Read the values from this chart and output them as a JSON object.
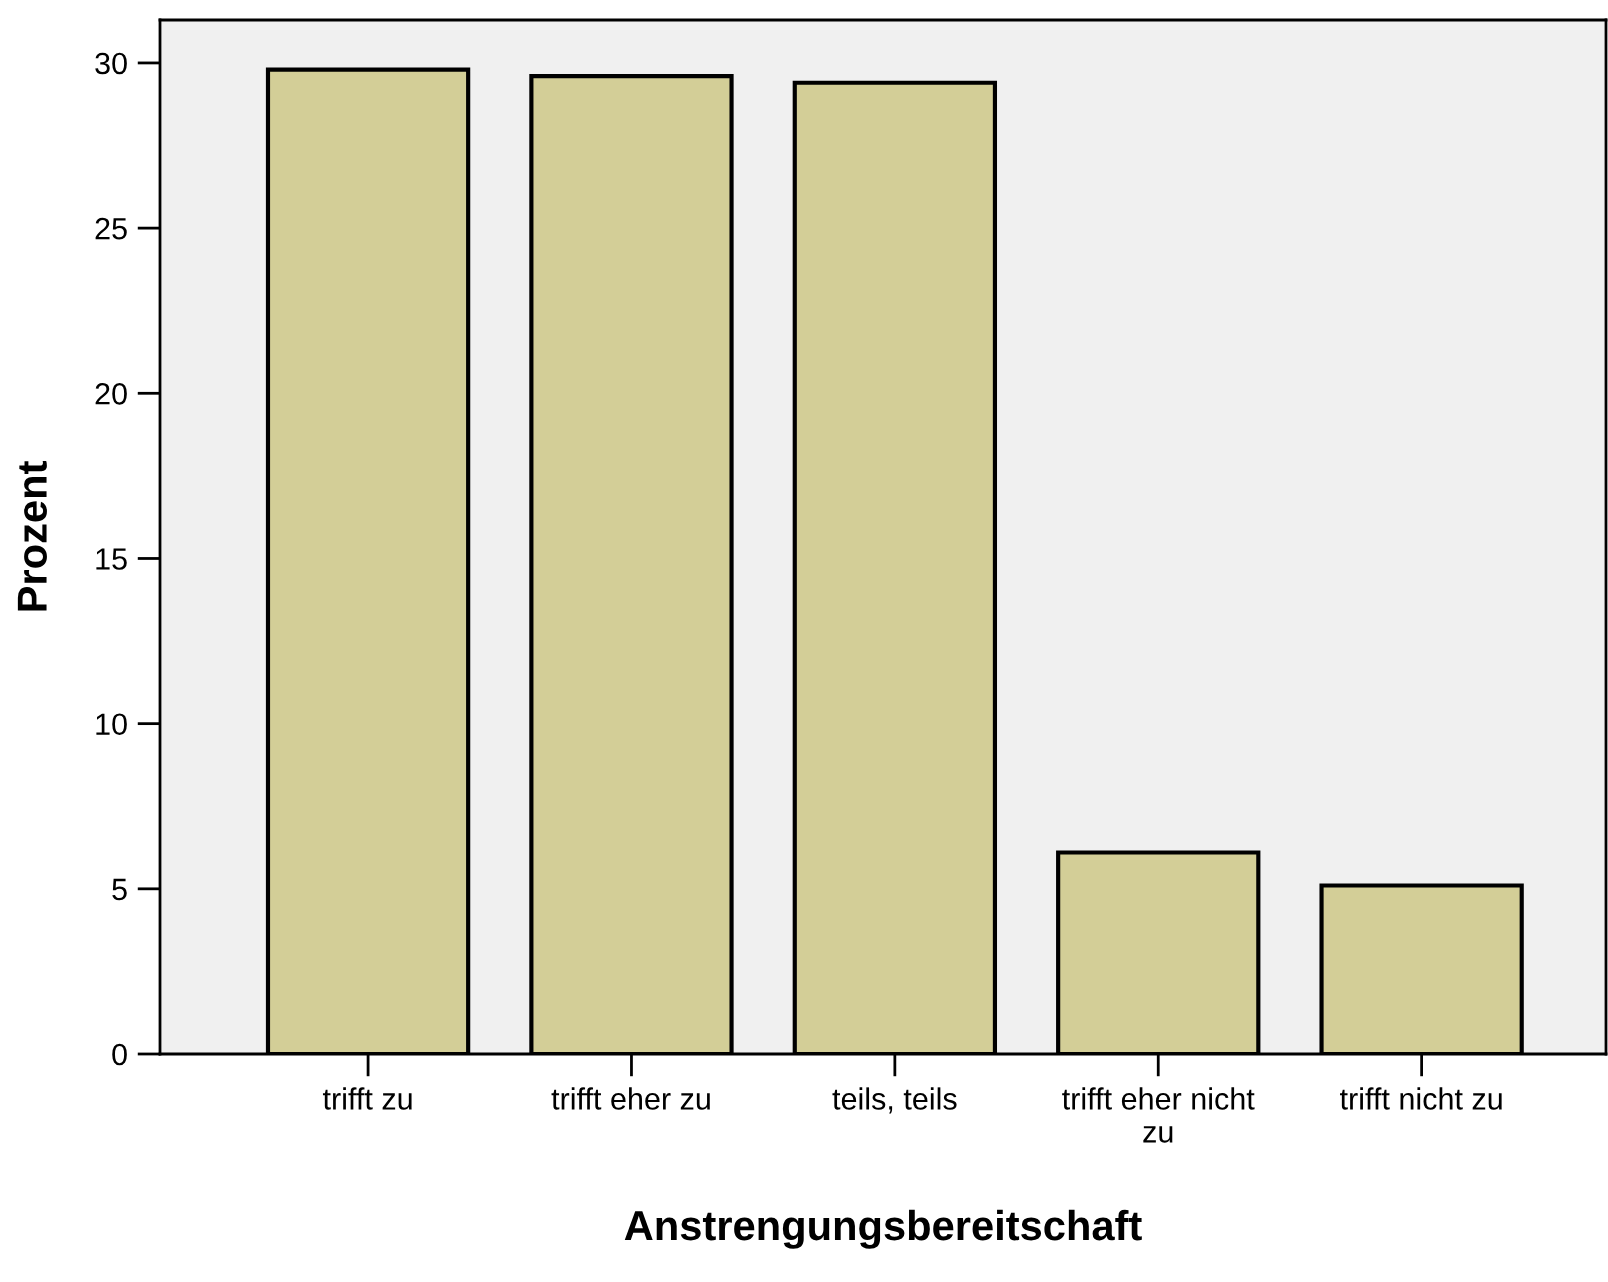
{
  "chart_data": {
    "type": "bar",
    "xlabel": "Anstrengungsbereitschaft",
    "ylabel": "Prozent",
    "categories": [
      "trifft zu",
      "trifft eher zu",
      "teils, teils",
      "trifft eher nicht\nzu",
      "trifft nicht zu"
    ],
    "values": [
      29.8,
      29.6,
      29.4,
      6.1,
      5.1
    ],
    "color": "#d3ce97",
    "ylim": [
      0,
      31.3
    ],
    "yticks": [
      0,
      5,
      10,
      15,
      20,
      25,
      30
    ],
    "grid": false,
    "legend": false
  }
}
